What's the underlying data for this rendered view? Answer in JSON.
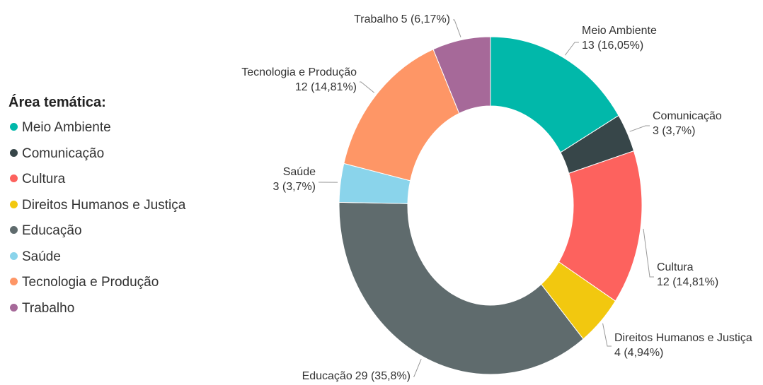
{
  "chart_data": {
    "type": "donut",
    "legend_title": "Área temática:",
    "legend_position": "left",
    "categories": [
      "Meio Ambiente",
      "Comunicação",
      "Cultura",
      "Direitos Humanos e Justiça",
      "Educação",
      "Saúde",
      "Tecnologia e Produção",
      "Trabalho"
    ],
    "values": [
      13,
      3,
      12,
      4,
      29,
      3,
      12,
      5
    ],
    "value_labels": [
      "13 (16,05%)",
      "3 (3,7%)",
      "12 (14,81%)",
      "4 (4,94%)",
      "29 (35,8%)",
      "3 (3,7%)",
      "12 (14,81%)",
      "5 (6,17%)"
    ],
    "colors": [
      "#01b8aa",
      "#374649",
      "#fd625e",
      "#f2c80f",
      "#5f6b6d",
      "#8ad4eb",
      "#fe9666",
      "#a66999"
    ]
  }
}
